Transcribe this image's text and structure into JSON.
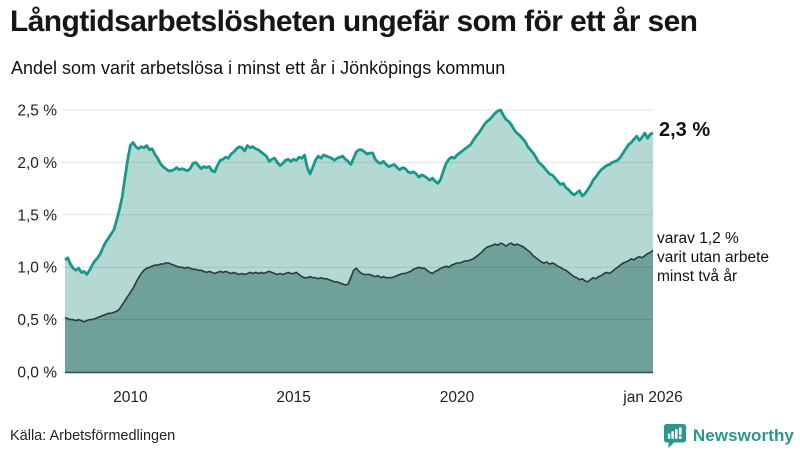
{
  "header": {
    "title": "Långtidsarbetslösheten ungefär som för ett år sen",
    "subtitle": "Andel som varit arbetslösa i minst ett år i Jönköpings kommun"
  },
  "annotations": {
    "latest_value": "2,3 %",
    "secondary_line1": "varav 1,2 %",
    "secondary_line2": "varit utan arbete",
    "secondary_line3": "minst två år"
  },
  "footer": {
    "source": "Källa: Arbetsförmedlingen",
    "brand": "Newsworthy",
    "brand_icon": "newsworthy-speech-bubble-bar-chart-icon"
  },
  "colors": {
    "title_text": "#161616",
    "body_text": "#111111",
    "axis_text": "#222222",
    "teal_line": "#15998b",
    "light_fill": "#b4d9d3",
    "dark_fill": "#70a09a",
    "dark_line": "#2e3c39",
    "grid": "rgba(0,0,0,0.11)",
    "baseline": "#3c4a47",
    "brand_teal": "#2b968d"
  },
  "chart_data": {
    "type": "area",
    "title": "Långtidsarbetslösheten ungefär som för ett år sen",
    "subtitle": "Andel som varit arbetslösa i minst ett år i Jönköpings kommun",
    "interval": "monthly",
    "x_start": "2008-01",
    "x_end": "2026-01",
    "x_range_years": [
      2008,
      2026
    ],
    "ylim": [
      0,
      2.5
    ],
    "grid": true,
    "legend_position": "right-annotations",
    "yticks": [
      {
        "value": 0.0,
        "label": "0,0 %"
      },
      {
        "value": 0.5,
        "label": "0,5 %"
      },
      {
        "value": 1.0,
        "label": "1,0 %"
      },
      {
        "value": 1.5,
        "label": "1,5 %"
      },
      {
        "value": 2.0,
        "label": "2,0 %"
      },
      {
        "value": 2.5,
        "label": "2,5 %"
      }
    ],
    "xticks": [
      {
        "year": 2010,
        "label": "2010"
      },
      {
        "year": 2015,
        "label": "2015"
      },
      {
        "year": 2020,
        "label": "2020"
      },
      {
        "year": 2026,
        "label": "jan 2026"
      }
    ],
    "series": [
      {
        "name": "Arbetslösa minst ett år",
        "latest_label": "2,3 %",
        "color": "#15998b",
        "fill": "#b4d9d3",
        "line_width": 2.8,
        "values": [
          1.07,
          1.09,
          1.03,
          0.99,
          0.97,
          0.99,
          0.95,
          0.96,
          0.93,
          0.97,
          1.02,
          1.06,
          1.09,
          1.13,
          1.19,
          1.24,
          1.28,
          1.32,
          1.36,
          1.45,
          1.55,
          1.67,
          1.85,
          2.02,
          2.16,
          2.19,
          2.15,
          2.13,
          2.15,
          2.14,
          2.16,
          2.12,
          2.13,
          2.08,
          2.04,
          1.99,
          1.96,
          1.94,
          1.92,
          1.92,
          1.93,
          1.95,
          1.93,
          1.94,
          1.93,
          1.92,
          1.94,
          1.99,
          2.0,
          1.97,
          1.94,
          1.96,
          1.95,
          1.96,
          1.92,
          1.91,
          1.97,
          2.02,
          2.03,
          2.05,
          2.04,
          2.08,
          2.1,
          2.13,
          2.15,
          2.14,
          2.11,
          2.16,
          2.14,
          2.15,
          2.13,
          2.12,
          2.1,
          2.08,
          2.06,
          2.01,
          2.03,
          2.04,
          2.0,
          1.97,
          1.99,
          2.02,
          2.03,
          2.01,
          2.03,
          2.02,
          2.05,
          2.04,
          2.07,
          1.95,
          1.89,
          1.95,
          2.02,
          2.06,
          2.04,
          2.07,
          2.06,
          2.05,
          2.04,
          2.02,
          2.04,
          2.05,
          2.06,
          2.03,
          2.01,
          1.98,
          2.04,
          2.1,
          2.12,
          2.12,
          2.1,
          2.08,
          2.09,
          2.09,
          2.03,
          2.0,
          1.99,
          2.01,
          1.98,
          1.96,
          1.97,
          1.98,
          1.95,
          1.93,
          1.95,
          1.94,
          1.91,
          1.9,
          1.91,
          1.89,
          1.86,
          1.88,
          1.87,
          1.85,
          1.83,
          1.85,
          1.82,
          1.8,
          1.84,
          1.92,
          1.99,
          2.03,
          2.05,
          2.04,
          2.07,
          2.09,
          2.11,
          2.13,
          2.15,
          2.17,
          2.21,
          2.25,
          2.28,
          2.32,
          2.36,
          2.39,
          2.41,
          2.44,
          2.47,
          2.49,
          2.5,
          2.45,
          2.41,
          2.39,
          2.36,
          2.31,
          2.28,
          2.26,
          2.23,
          2.2,
          2.15,
          2.12,
          2.09,
          2.05,
          2.0,
          1.98,
          1.95,
          1.92,
          1.89,
          1.88,
          1.85,
          1.82,
          1.79,
          1.8,
          1.76,
          1.74,
          1.71,
          1.69,
          1.71,
          1.73,
          1.68,
          1.7,
          1.74,
          1.78,
          1.83,
          1.86,
          1.9,
          1.93,
          1.95,
          1.97,
          1.98,
          2.0,
          2.01,
          2.02,
          2.05,
          2.09,
          2.13,
          2.17,
          2.19,
          2.22,
          2.25,
          2.21,
          2.24,
          2.28,
          2.23,
          2.27,
          2.28
        ]
      },
      {
        "name": "Arbetslösa minst två år",
        "latest_label": "1,2 %",
        "color": "#2e3c39",
        "fill": "#70a09a",
        "line_width": 1.6,
        "values": [
          0.52,
          0.51,
          0.5,
          0.5,
          0.49,
          0.5,
          0.49,
          0.48,
          0.49,
          0.5,
          0.5,
          0.51,
          0.52,
          0.53,
          0.54,
          0.55,
          0.56,
          0.56,
          0.57,
          0.58,
          0.6,
          0.64,
          0.68,
          0.72,
          0.76,
          0.8,
          0.85,
          0.9,
          0.94,
          0.97,
          0.99,
          1.0,
          1.01,
          1.02,
          1.02,
          1.03,
          1.03,
          1.04,
          1.04,
          1.03,
          1.02,
          1.01,
          1.0,
          1.0,
          0.99,
          1.0,
          0.99,
          0.98,
          0.98,
          0.97,
          0.97,
          0.96,
          0.95,
          0.96,
          0.95,
          0.94,
          0.95,
          0.96,
          0.95,
          0.96,
          0.95,
          0.94,
          0.95,
          0.94,
          0.93,
          0.94,
          0.93,
          0.94,
          0.95,
          0.94,
          0.95,
          0.94,
          0.95,
          0.94,
          0.95,
          0.96,
          0.95,
          0.94,
          0.93,
          0.94,
          0.93,
          0.94,
          0.95,
          0.94,
          0.94,
          0.95,
          0.93,
          0.91,
          0.9,
          0.9,
          0.91,
          0.9,
          0.9,
          0.89,
          0.9,
          0.89,
          0.89,
          0.88,
          0.87,
          0.86,
          0.86,
          0.85,
          0.84,
          0.83,
          0.84,
          0.9,
          0.97,
          0.99,
          0.96,
          0.94,
          0.93,
          0.93,
          0.93,
          0.92,
          0.91,
          0.92,
          0.9,
          0.91,
          0.9,
          0.9,
          0.9,
          0.91,
          0.92,
          0.93,
          0.94,
          0.94,
          0.95,
          0.96,
          0.98,
          0.99,
          1.0,
          0.99,
          0.99,
          0.97,
          0.95,
          0.94,
          0.96,
          0.97,
          0.99,
          1.0,
          1.01,
          1.0,
          1.02,
          1.03,
          1.04,
          1.04,
          1.05,
          1.06,
          1.06,
          1.07,
          1.08,
          1.1,
          1.12,
          1.14,
          1.17,
          1.19,
          1.2,
          1.21,
          1.22,
          1.21,
          1.23,
          1.22,
          1.2,
          1.22,
          1.23,
          1.21,
          1.22,
          1.21,
          1.2,
          1.18,
          1.16,
          1.14,
          1.11,
          1.09,
          1.07,
          1.05,
          1.04,
          1.05,
          1.03,
          1.04,
          1.03,
          1.01,
          1.0,
          0.98,
          0.97,
          0.95,
          0.93,
          0.91,
          0.9,
          0.88,
          0.89,
          0.87,
          0.86,
          0.88,
          0.9,
          0.89,
          0.91,
          0.92,
          0.94,
          0.95,
          0.94,
          0.96,
          0.98,
          1.0,
          1.02,
          1.04,
          1.05,
          1.06,
          1.08,
          1.07,
          1.09,
          1.1,
          1.09,
          1.11,
          1.13,
          1.14,
          1.16
        ]
      }
    ]
  }
}
